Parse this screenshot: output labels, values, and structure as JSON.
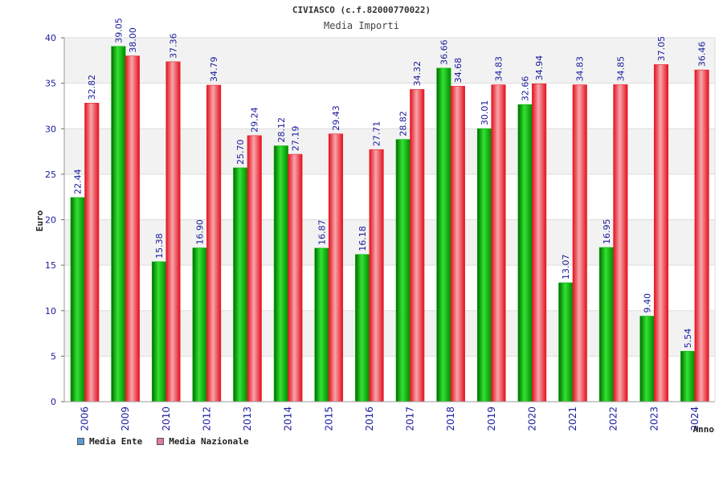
{
  "title": "CIVIASCO (c.f.82000770022)",
  "subtitle": "Media Importi",
  "chart_data": {
    "type": "bar",
    "categories": [
      "2006",
      "2009",
      "2010",
      "2012",
      "2013",
      "2014",
      "2015",
      "2016",
      "2017",
      "2018",
      "2019",
      "2020",
      "2021",
      "2022",
      "2023",
      "2024"
    ],
    "series": [
      {
        "name": "Media Ente",
        "values": [
          22.44,
          39.05,
          15.38,
          16.9,
          25.7,
          28.12,
          16.87,
          16.18,
          28.82,
          36.66,
          30.01,
          32.66,
          13.07,
          16.95,
          9.4,
          5.54
        ],
        "color": "#00b400",
        "legend_color": "#5b9bd5"
      },
      {
        "name": "Media Nazionale",
        "values": [
          32.82,
          38.0,
          37.36,
          34.79,
          29.24,
          27.19,
          29.43,
          27.71,
          34.32,
          34.68,
          34.83,
          34.94,
          34.83,
          34.85,
          37.05,
          36.46
        ],
        "color": "#e8202a",
        "legend_color": "#e07aa8"
      }
    ],
    "ylabel": "Euro",
    "xlabel": "Anno",
    "ylim": [
      0,
      40
    ],
    "yticks": [
      0,
      5,
      10,
      15,
      20,
      25,
      30,
      35,
      40
    ],
    "grid": true
  },
  "legend": {
    "items": [
      {
        "label": "Media Ente",
        "color": "#5b9bd5"
      },
      {
        "label": "Media Nazionale",
        "color": "#e07aa8"
      }
    ]
  }
}
